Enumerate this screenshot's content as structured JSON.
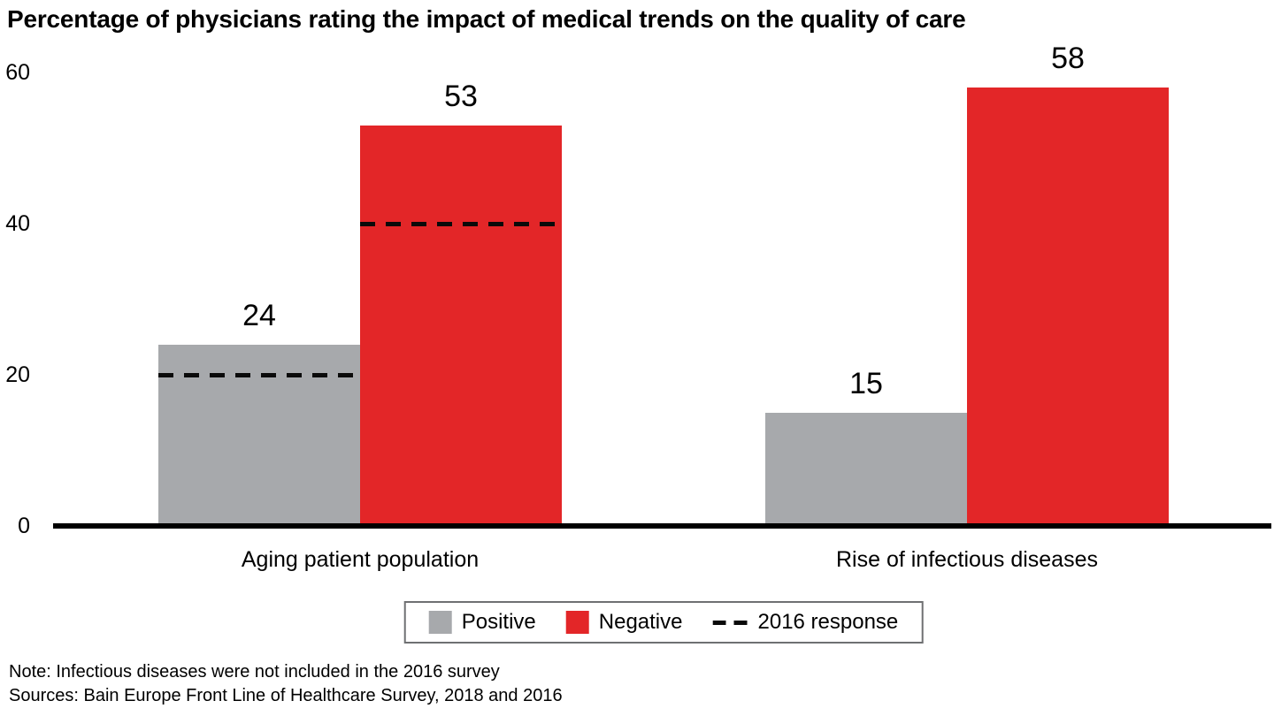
{
  "title": "Percentage of physicians rating the impact of medical trends on the quality of care",
  "note": "Note: Infectious diseases were not included in the 2016 survey",
  "sources": "Sources: Bain Europe Front Line of Healthcare Survey, 2018 and 2016",
  "colors": {
    "positive": "#A7A9AC",
    "negative": "#E32628",
    "reference_dash": "#0A0A0A",
    "axis": "#000000"
  },
  "legend": {
    "items": [
      {
        "label": "Positive",
        "swatch": "square",
        "color": "#A7A9AC"
      },
      {
        "label": "Negative",
        "swatch": "square",
        "color": "#E32628"
      },
      {
        "label": "2016 response",
        "swatch": "dash",
        "color": "#0A0A0A"
      }
    ]
  },
  "chart_data": {
    "type": "bar",
    "title": "Percentage of physicians rating the impact of medical trends on the quality of care",
    "categories": [
      "Aging patient population",
      "Rise of infectious diseases"
    ],
    "series": [
      {
        "name": "Positive",
        "color": "#A7A9AC",
        "values": [
          24,
          15
        ]
      },
      {
        "name": "Negative",
        "color": "#E32628",
        "values": [
          53,
          58
        ]
      }
    ],
    "reference_lines_2016": {
      "name": "2016 response",
      "style": "dashed",
      "values": [
        {
          "category": "Aging patient population",
          "Positive": 20,
          "Negative": 40
        },
        {
          "category": "Rise of infectious diseases",
          "Positive": null,
          "Negative": null
        }
      ]
    },
    "bar_labels": [
      [
        24,
        15
      ],
      [
        53,
        58
      ]
    ],
    "xlabel": "",
    "ylabel": "",
    "ylim": [
      0,
      60
    ],
    "yticks": [
      0,
      20,
      40,
      60
    ],
    "grid": false,
    "legend_position": "bottom"
  }
}
